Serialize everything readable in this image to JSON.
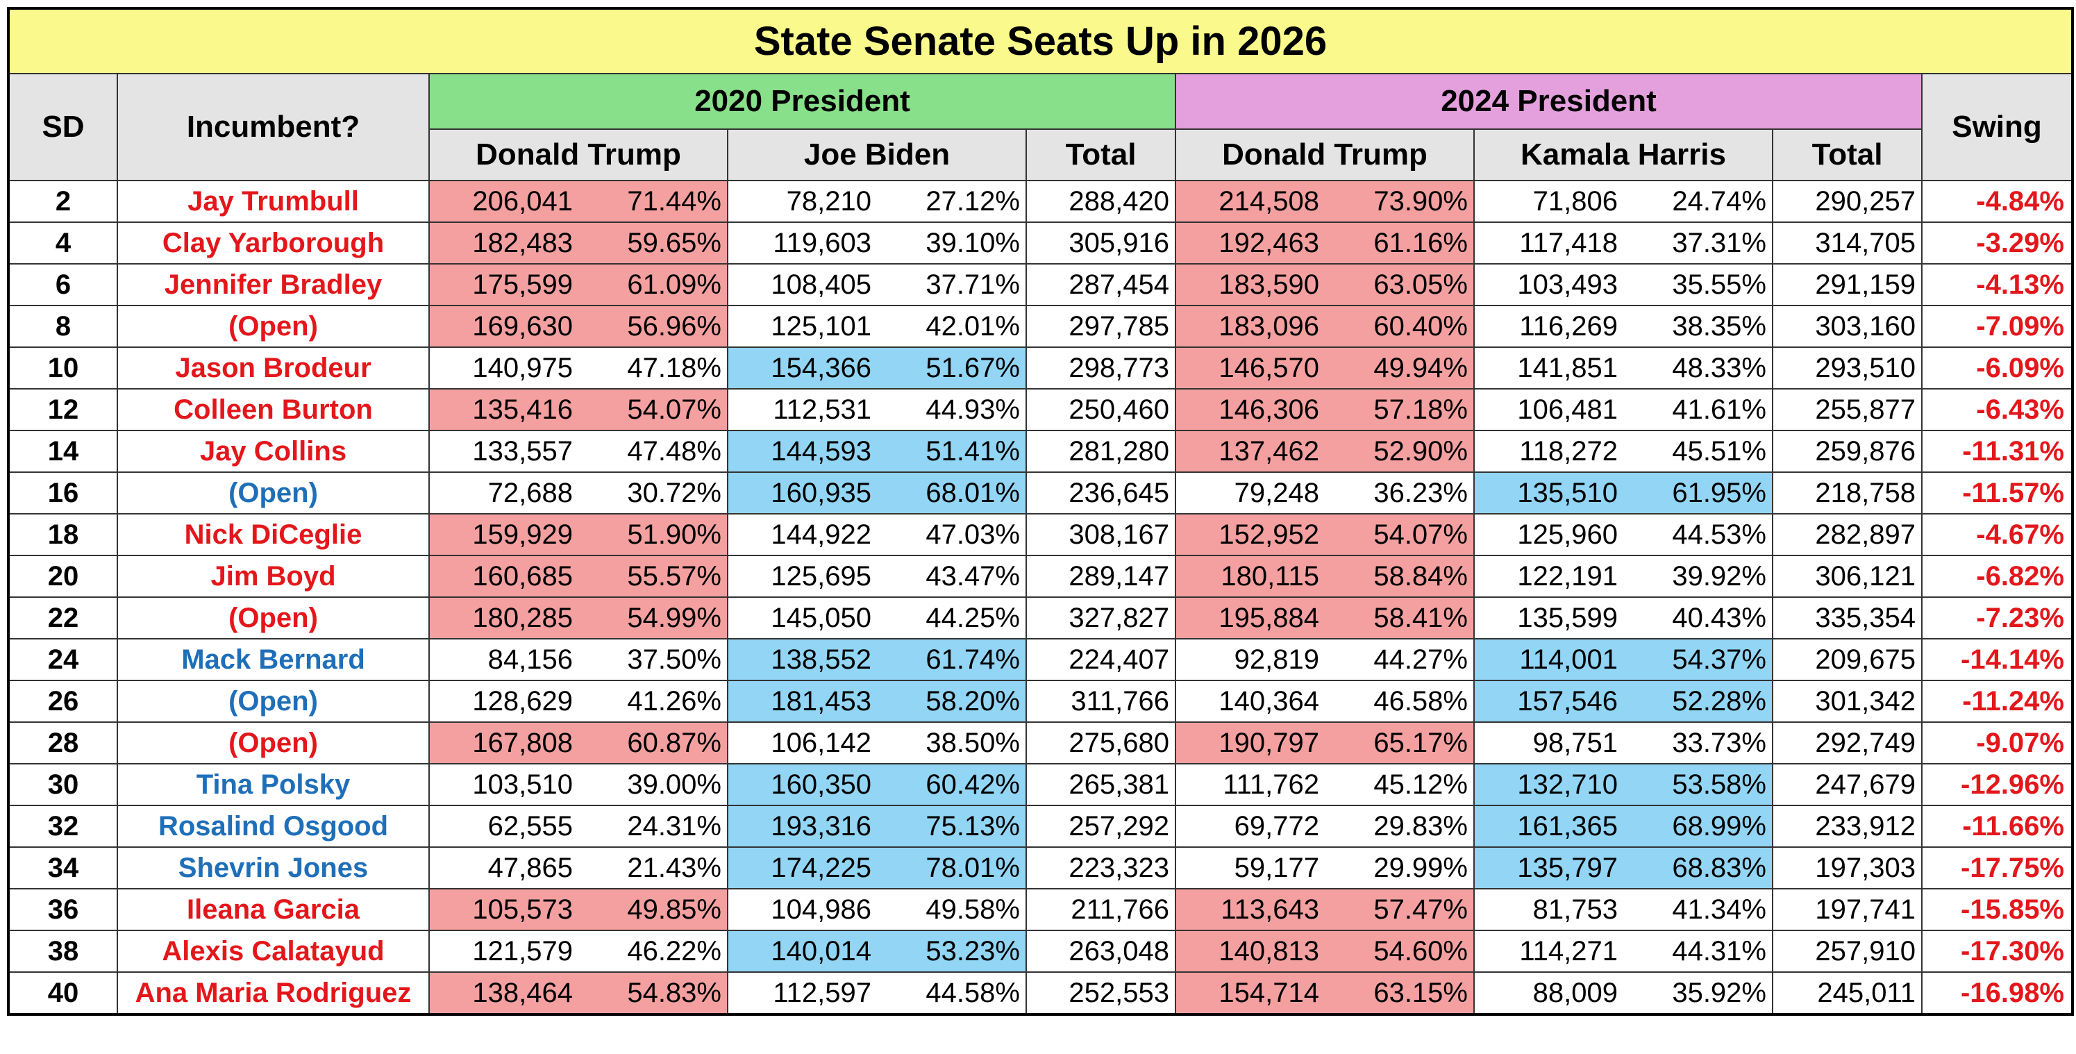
{
  "title": "State Senate Seats Up in 2026",
  "headers": {
    "sd": "SD",
    "incumbent": "Incumbent?",
    "group_2020": "2020 President",
    "group_2024": "2024 President",
    "swing": "Swing",
    "columns": [
      "Donald Trump",
      "Joe Biden",
      "Total",
      "Donald Trump",
      "Kamala Harris",
      "Total"
    ]
  },
  "swing_color": "#e3171b",
  "rows": [
    {
      "sd": "2",
      "incumbent": "Jay Trumbull",
      "incumbent_color": "#e3171b",
      "cells": [
        "206,041",
        "71.44%",
        "78,210",
        "27.12%",
        "288,420",
        "214,508",
        "73.90%",
        "71,806",
        "24.74%",
        "290,257"
      ],
      "fills": [
        "#f4a0a0",
        "#f4a0a0",
        null,
        null,
        null,
        "#f4a0a0",
        "#f4a0a0",
        null,
        null,
        null
      ],
      "swing": "-4.84%"
    },
    {
      "sd": "4",
      "incumbent": "Clay Yarborough",
      "incumbent_color": "#e3171b",
      "cells": [
        "182,483",
        "59.65%",
        "119,603",
        "39.10%",
        "305,916",
        "192,463",
        "61.16%",
        "117,418",
        "37.31%",
        "314,705"
      ],
      "fills": [
        "#f4a0a0",
        "#f4a0a0",
        null,
        null,
        null,
        "#f4a0a0",
        "#f4a0a0",
        null,
        null,
        null
      ],
      "swing": "-3.29%"
    },
    {
      "sd": "6",
      "incumbent": "Jennifer Bradley",
      "incumbent_color": "#e3171b",
      "cells": [
        "175,599",
        "61.09%",
        "108,405",
        "37.71%",
        "287,454",
        "183,590",
        "63.05%",
        "103,493",
        "35.55%",
        "291,159"
      ],
      "fills": [
        "#f4a0a0",
        "#f4a0a0",
        null,
        null,
        null,
        "#f4a0a0",
        "#f4a0a0",
        null,
        null,
        null
      ],
      "swing": "-4.13%"
    },
    {
      "sd": "8",
      "incumbent": "(Open)",
      "incumbent_color": "#e3171b",
      "cells": [
        "169,630",
        "56.96%",
        "125,101",
        "42.01%",
        "297,785",
        "183,096",
        "60.40%",
        "116,269",
        "38.35%",
        "303,160"
      ],
      "fills": [
        "#f4a0a0",
        "#f4a0a0",
        null,
        null,
        null,
        "#f4a0a0",
        "#f4a0a0",
        null,
        null,
        null
      ],
      "swing": "-7.09%"
    },
    {
      "sd": "10",
      "incumbent": "Jason Brodeur",
      "incumbent_color": "#e3171b",
      "cells": [
        "140,975",
        "47.18%",
        "154,366",
        "51.67%",
        "298,773",
        "146,570",
        "49.94%",
        "141,851",
        "48.33%",
        "293,510"
      ],
      "fills": [
        null,
        null,
        "#92d5f5",
        "#92d5f5",
        null,
        "#f4a0a0",
        "#f4a0a0",
        null,
        null,
        null
      ],
      "swing": "-6.09%"
    },
    {
      "sd": "12",
      "incumbent": "Colleen Burton",
      "incumbent_color": "#e3171b",
      "cells": [
        "135,416",
        "54.07%",
        "112,531",
        "44.93%",
        "250,460",
        "146,306",
        "57.18%",
        "106,481",
        "41.61%",
        "255,877"
      ],
      "fills": [
        "#f4a0a0",
        "#f4a0a0",
        null,
        null,
        null,
        "#f4a0a0",
        "#f4a0a0",
        null,
        null,
        null
      ],
      "swing": "-6.43%"
    },
    {
      "sd": "14",
      "incumbent": "Jay Collins",
      "incumbent_color": "#e3171b",
      "cells": [
        "133,557",
        "47.48%",
        "144,593",
        "51.41%",
        "281,280",
        "137,462",
        "52.90%",
        "118,272",
        "45.51%",
        "259,876"
      ],
      "fills": [
        null,
        null,
        "#92d5f5",
        "#92d5f5",
        null,
        "#f4a0a0",
        "#f4a0a0",
        null,
        null,
        null
      ],
      "swing": "-11.31%"
    },
    {
      "sd": "16",
      "incumbent": "(Open)",
      "incumbent_color": "#1f6fb8",
      "cells": [
        "72,688",
        "30.72%",
        "160,935",
        "68.01%",
        "236,645",
        "79,248",
        "36.23%",
        "135,510",
        "61.95%",
        "218,758"
      ],
      "fills": [
        null,
        null,
        "#92d5f5",
        "#92d5f5",
        null,
        null,
        null,
        "#92d5f5",
        "#92d5f5",
        null
      ],
      "swing": "-11.57%"
    },
    {
      "sd": "18",
      "incumbent": "Nick DiCeglie",
      "incumbent_color": "#e3171b",
      "cells": [
        "159,929",
        "51.90%",
        "144,922",
        "47.03%",
        "308,167",
        "152,952",
        "54.07%",
        "125,960",
        "44.53%",
        "282,897"
      ],
      "fills": [
        "#f4a0a0",
        "#f4a0a0",
        null,
        null,
        null,
        "#f4a0a0",
        "#f4a0a0",
        null,
        null,
        null
      ],
      "swing": "-4.67%"
    },
    {
      "sd": "20",
      "incumbent": "Jim Boyd",
      "incumbent_color": "#e3171b",
      "cells": [
        "160,685",
        "55.57%",
        "125,695",
        "43.47%",
        "289,147",
        "180,115",
        "58.84%",
        "122,191",
        "39.92%",
        "306,121"
      ],
      "fills": [
        "#f4a0a0",
        "#f4a0a0",
        null,
        null,
        null,
        "#f4a0a0",
        "#f4a0a0",
        null,
        null,
        null
      ],
      "swing": "-6.82%"
    },
    {
      "sd": "22",
      "incumbent": "(Open)",
      "incumbent_color": "#e3171b",
      "cells": [
        "180,285",
        "54.99%",
        "145,050",
        "44.25%",
        "327,827",
        "195,884",
        "58.41%",
        "135,599",
        "40.43%",
        "335,354"
      ],
      "fills": [
        "#f4a0a0",
        "#f4a0a0",
        null,
        null,
        null,
        "#f4a0a0",
        "#f4a0a0",
        null,
        null,
        null
      ],
      "swing": "-7.23%"
    },
    {
      "sd": "24",
      "incumbent": "Mack Bernard",
      "incumbent_color": "#1f6fb8",
      "cells": [
        "84,156",
        "37.50%",
        "138,552",
        "61.74%",
        "224,407",
        "92,819",
        "44.27%",
        "114,001",
        "54.37%",
        "209,675"
      ],
      "fills": [
        null,
        null,
        "#92d5f5",
        "#92d5f5",
        null,
        null,
        null,
        "#92d5f5",
        "#92d5f5",
        null
      ],
      "swing": "-14.14%"
    },
    {
      "sd": "26",
      "incumbent": "(Open)",
      "incumbent_color": "#1f6fb8",
      "cells": [
        "128,629",
        "41.26%",
        "181,453",
        "58.20%",
        "311,766",
        "140,364",
        "46.58%",
        "157,546",
        "52.28%",
        "301,342"
      ],
      "fills": [
        null,
        null,
        "#92d5f5",
        "#92d5f5",
        null,
        null,
        null,
        "#92d5f5",
        "#92d5f5",
        null
      ],
      "swing": "-11.24%"
    },
    {
      "sd": "28",
      "incumbent": "(Open)",
      "incumbent_color": "#e3171b",
      "cells": [
        "167,808",
        "60.87%",
        "106,142",
        "38.50%",
        "275,680",
        "190,797",
        "65.17%",
        "98,751",
        "33.73%",
        "292,749"
      ],
      "fills": [
        "#f4a0a0",
        "#f4a0a0",
        null,
        null,
        null,
        "#f4a0a0",
        "#f4a0a0",
        null,
        null,
        null
      ],
      "swing": "-9.07%"
    },
    {
      "sd": "30",
      "incumbent": "Tina Polsky",
      "incumbent_color": "#1f6fb8",
      "cells": [
        "103,510",
        "39.00%",
        "160,350",
        "60.42%",
        "265,381",
        "111,762",
        "45.12%",
        "132,710",
        "53.58%",
        "247,679"
      ],
      "fills": [
        null,
        null,
        "#92d5f5",
        "#92d5f5",
        null,
        null,
        null,
        "#92d5f5",
        "#92d5f5",
        null
      ],
      "swing": "-12.96%"
    },
    {
      "sd": "32",
      "incumbent": "Rosalind Osgood",
      "incumbent_color": "#1f6fb8",
      "cells": [
        "62,555",
        "24.31%",
        "193,316",
        "75.13%",
        "257,292",
        "69,772",
        "29.83%",
        "161,365",
        "68.99%",
        "233,912"
      ],
      "fills": [
        null,
        null,
        "#92d5f5",
        "#92d5f5",
        null,
        null,
        null,
        "#92d5f5",
        "#92d5f5",
        null
      ],
      "swing": "-11.66%"
    },
    {
      "sd": "34",
      "incumbent": "Shevrin Jones",
      "incumbent_color": "#1f6fb8",
      "cells": [
        "47,865",
        "21.43%",
        "174,225",
        "78.01%",
        "223,323",
        "59,177",
        "29.99%",
        "135,797",
        "68.83%",
        "197,303"
      ],
      "fills": [
        null,
        null,
        "#92d5f5",
        "#92d5f5",
        null,
        null,
        null,
        "#92d5f5",
        "#92d5f5",
        null
      ],
      "swing": "-17.75%"
    },
    {
      "sd": "36",
      "incumbent": "Ileana Garcia",
      "incumbent_color": "#e3171b",
      "cells": [
        "105,573",
        "49.85%",
        "104,986",
        "49.58%",
        "211,766",
        "113,643",
        "57.47%",
        "81,753",
        "41.34%",
        "197,741"
      ],
      "fills": [
        "#f4a0a0",
        "#f4a0a0",
        null,
        null,
        null,
        "#f4a0a0",
        "#f4a0a0",
        null,
        null,
        null
      ],
      "swing": "-15.85%"
    },
    {
      "sd": "38",
      "incumbent": "Alexis Calatayud",
      "incumbent_color": "#e3171b",
      "cells": [
        "121,579",
        "46.22%",
        "140,014",
        "53.23%",
        "263,048",
        "140,813",
        "54.60%",
        "114,271",
        "44.31%",
        "257,910"
      ],
      "fills": [
        null,
        null,
        "#92d5f5",
        "#92d5f5",
        null,
        "#f4a0a0",
        "#f4a0a0",
        null,
        null,
        null
      ],
      "swing": "-17.30%"
    },
    {
      "sd": "40",
      "incumbent": "Ana Maria Rodriguez",
      "incumbent_color": "#e3171b",
      "cells": [
        "138,464",
        "54.83%",
        "112,597",
        "44.58%",
        "252,553",
        "154,714",
        "63.15%",
        "88,009",
        "35.92%",
        "245,011"
      ],
      "fills": [
        "#f4a0a0",
        "#f4a0a0",
        null,
        null,
        null,
        "#f4a0a0",
        "#f4a0a0",
        null,
        null,
        null
      ],
      "swing": "-16.98%"
    }
  ]
}
